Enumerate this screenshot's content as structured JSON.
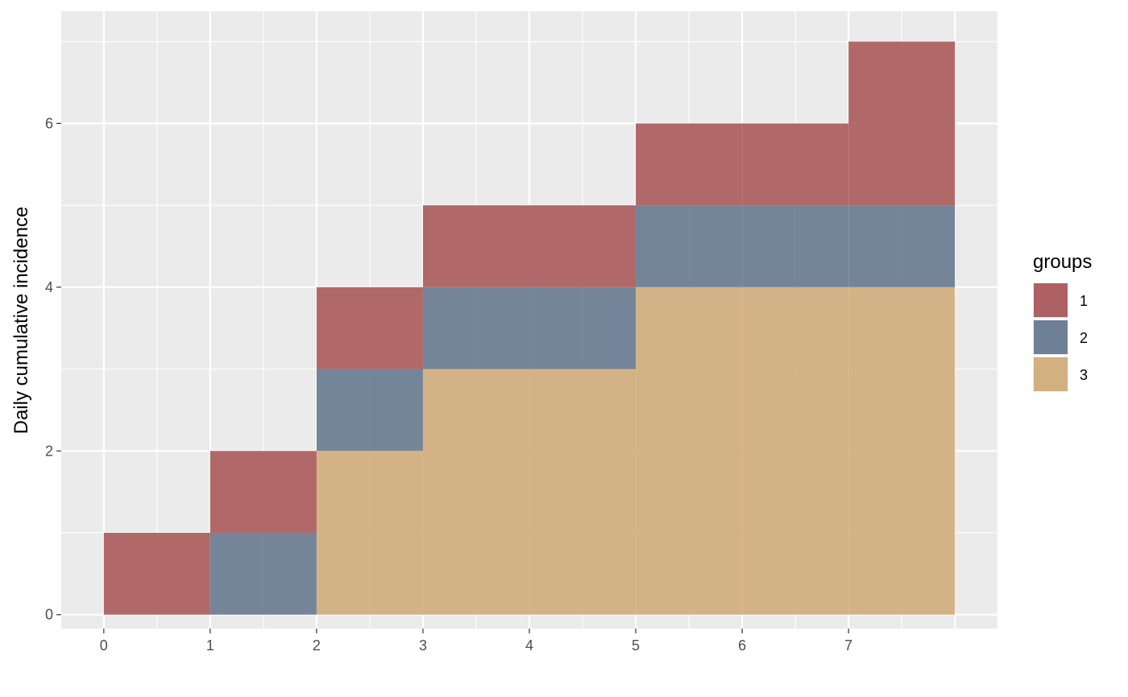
{
  "chart_data": {
    "type": "bar",
    "stacked": true,
    "title": "",
    "xlabel": "",
    "ylabel": "Daily cumulative incidence",
    "xlim": [
      -0.4,
      8.4
    ],
    "ylim": [
      -0.17,
      7.37
    ],
    "x_ticks": [
      0,
      1,
      2,
      3,
      4,
      5,
      6,
      7
    ],
    "y_ticks": [
      0,
      2,
      4,
      6
    ],
    "grid": true,
    "legend": {
      "title": "groups",
      "position": "right"
    },
    "bin_edges": [
      0,
      1,
      2,
      3,
      4,
      5,
      6,
      7,
      8
    ],
    "series": [
      {
        "name": "3",
        "color": "#D2B080",
        "values": [
          0,
          0,
          2,
          3,
          3,
          4,
          4,
          4
        ]
      },
      {
        "name": "2",
        "color": "#6E8096",
        "values": [
          0,
          1,
          1,
          1,
          1,
          1,
          1,
          1
        ]
      },
      {
        "name": "1",
        "color": "#AE6162",
        "values": [
          1,
          1,
          1,
          1,
          1,
          1,
          1,
          2
        ]
      }
    ],
    "legend_order": [
      "1",
      "2",
      "3"
    ]
  }
}
